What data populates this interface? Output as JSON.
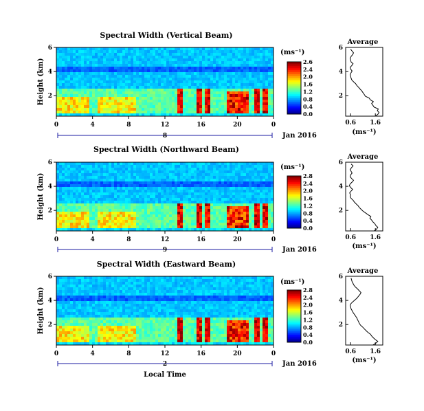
{
  "figure": {
    "xlabel": "Local Time",
    "date_label": "Jan 2016"
  },
  "chart_data": [
    {
      "type": "heatmap",
      "title": "Spectral Width (Vertical Beam)",
      "ylabel": "Height (km)",
      "x_ticks": [
        "0",
        "4",
        "8",
        "12",
        "16",
        "20",
        "0"
      ],
      "y_ticks": [
        "6",
        "4",
        "2"
      ],
      "xlim": [
        0,
        24
      ],
      "ylim": [
        0.3,
        6
      ],
      "day_label": "8",
      "colorbar": {
        "unit": "(ms⁻¹)",
        "ticks": [
          "2.6",
          "2.4",
          "2.0",
          "1.6",
          "1.2",
          "0.8",
          "0.4",
          "0.0"
        ],
        "range": [
          0,
          2.6
        ]
      }
    },
    {
      "type": "line",
      "title": "Average",
      "xlabel": "(ms⁻¹)",
      "x_ticks": [
        "0.6",
        "1.6"
      ],
      "y_ticks": [
        "6",
        "4",
        "2"
      ],
      "xlim": [
        0.4,
        1.9
      ],
      "ylim": [
        0.3,
        6
      ],
      "x": [
        1.6,
        1.7,
        1.75,
        1.68,
        1.72,
        1.55,
        1.5,
        1.45,
        1.52,
        1.4,
        1.35,
        1.2,
        1.15,
        1.1,
        1.05,
        0.98,
        0.92,
        0.85,
        0.8,
        0.72,
        0.65,
        0.62,
        0.6,
        0.58,
        0.62,
        0.66,
        0.6,
        0.58,
        0.65,
        0.7,
        0.62,
        0.6,
        0.58,
        0.62,
        0.68,
        0.72,
        0.66,
        0.6
      ],
      "y": [
        0.3,
        0.45,
        0.6,
        0.75,
        0.9,
        1.05,
        1.2,
        1.35,
        1.5,
        1.65,
        1.8,
        1.95,
        2.1,
        2.25,
        2.4,
        2.55,
        2.7,
        2.85,
        3.0,
        3.15,
        3.3,
        3.45,
        3.6,
        3.75,
        3.9,
        4.05,
        4.2,
        4.35,
        4.5,
        4.65,
        4.8,
        4.95,
        5.1,
        5.25,
        5.4,
        5.55,
        5.7,
        5.85
      ]
    },
    {
      "type": "heatmap",
      "title": "Spectral Width (Northward Beam)",
      "ylabel": "Height (km)",
      "x_ticks": [
        "0",
        "4",
        "8",
        "12",
        "16",
        "20",
        "0"
      ],
      "y_ticks": [
        "6",
        "4",
        "2"
      ],
      "xlim": [
        0,
        24
      ],
      "ylim": [
        0.3,
        6
      ],
      "day_label": "9",
      "colorbar": {
        "unit": "(ms⁻¹)",
        "ticks": [
          "2.8",
          "2.4",
          "2.0",
          "1.6",
          "1.2",
          "0.8",
          "0.4",
          "0.0"
        ],
        "range": [
          0,
          2.8
        ]
      }
    },
    {
      "type": "line",
      "title": "Average",
      "xlabel": "(ms⁻¹)",
      "x_ticks": [
        "0.6",
        "1.6"
      ],
      "y_ticks": [
        "6",
        "4",
        "2"
      ],
      "xlim": [
        0.4,
        1.9
      ],
      "ylim": [
        0.3,
        6
      ],
      "x": [
        1.55,
        1.65,
        1.7,
        1.62,
        1.58,
        1.5,
        1.45,
        1.38,
        1.42,
        1.3,
        1.2,
        1.1,
        1.02,
        0.95,
        0.9,
        0.82,
        0.75,
        0.7,
        0.62,
        0.58,
        0.6,
        0.56,
        0.62,
        0.68,
        0.6,
        0.55,
        0.58,
        0.66,
        0.72,
        0.64,
        0.58,
        0.6,
        0.66,
        0.62,
        0.58,
        0.64,
        0.7,
        0.62
      ],
      "y": [
        0.3,
        0.45,
        0.6,
        0.75,
        0.9,
        1.05,
        1.2,
        1.35,
        1.5,
        1.65,
        1.8,
        1.95,
        2.1,
        2.25,
        2.4,
        2.55,
        2.7,
        2.85,
        3.0,
        3.15,
        3.3,
        3.45,
        3.6,
        3.75,
        3.9,
        4.05,
        4.2,
        4.35,
        4.5,
        4.65,
        4.8,
        4.95,
        5.1,
        5.25,
        5.4,
        5.55,
        5.7,
        5.85
      ]
    },
    {
      "type": "heatmap",
      "title": "Spectral Width (Eastward Beam)",
      "ylabel": "Height (km)",
      "x_ticks": [
        "0",
        "4",
        "8",
        "12",
        "16",
        "20",
        "0"
      ],
      "y_ticks": [
        "6",
        "4",
        "2"
      ],
      "xlim": [
        0,
        24
      ],
      "ylim": [
        0.3,
        6
      ],
      "day_label": "2",
      "colorbar": {
        "unit": "(ms⁻¹)",
        "ticks": [
          "2.8",
          "2.4",
          "2.0",
          "1.6",
          "1.2",
          "0.8",
          "0.4",
          "0.0"
        ],
        "range": [
          0,
          2.8
        ]
      }
    },
    {
      "type": "line",
      "title": "Average",
      "xlabel": "(ms⁻¹)",
      "x_ticks": [
        "0.6",
        "1.6"
      ],
      "y_ticks": [
        "6",
        "4",
        "2"
      ],
      "xlim": [
        0.4,
        1.9
      ],
      "ylim": [
        0.3,
        6
      ],
      "x": [
        1.5,
        1.62,
        1.7,
        1.6,
        1.52,
        1.45,
        1.4,
        1.3,
        1.22,
        1.15,
        1.08,
        1.0,
        0.95,
        0.92,
        0.88,
        0.85,
        0.8,
        0.75,
        0.7,
        0.66,
        0.62,
        0.6,
        0.58,
        0.62,
        0.7,
        0.78,
        0.86,
        0.92,
        0.98,
        1.02,
        0.95,
        0.88,
        0.8,
        0.74,
        0.7,
        0.66,
        0.64,
        0.62
      ],
      "y": [
        0.3,
        0.45,
        0.6,
        0.75,
        0.9,
        1.05,
        1.2,
        1.35,
        1.5,
        1.65,
        1.8,
        1.95,
        2.1,
        2.25,
        2.4,
        2.55,
        2.7,
        2.85,
        3.0,
        3.15,
        3.3,
        3.45,
        3.6,
        3.75,
        3.9,
        4.05,
        4.2,
        4.35,
        4.5,
        4.65,
        4.8,
        4.95,
        5.1,
        5.25,
        5.4,
        5.55,
        5.7,
        5.85
      ]
    }
  ]
}
